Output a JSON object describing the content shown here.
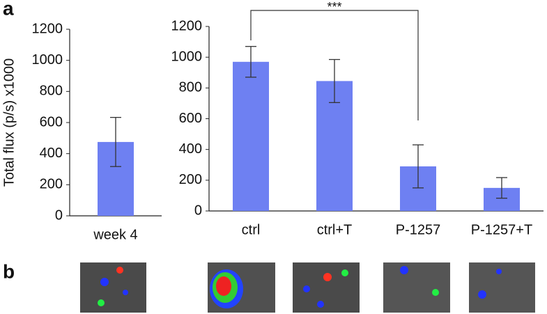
{
  "panel_labels": [
    "a",
    "b"
  ],
  "chart_data": [
    {
      "type": "bar",
      "y_label": "Total flux (p/s) x1000",
      "categories": [
        "week 4"
      ],
      "values": [
        475
      ],
      "errors": [
        158
      ],
      "color": "#6e80f2",
      "ylim": [
        0,
        1200
      ],
      "yticks": [
        0,
        200,
        400,
        600,
        800,
        1000,
        1200
      ]
    },
    {
      "type": "bar",
      "annotation": "***",
      "categories": [
        "ctrl",
        "ctrl+T",
        "P-1257",
        "P-1257+T"
      ],
      "values": [
        970,
        845,
        290,
        150
      ],
      "errors": [
        100,
        140,
        140,
        67
      ],
      "color": "#6e80f2",
      "ylim": [
        0,
        1200
      ],
      "yticks": [
        0,
        200,
        400,
        600,
        800,
        1000,
        1200
      ]
    }
  ]
}
